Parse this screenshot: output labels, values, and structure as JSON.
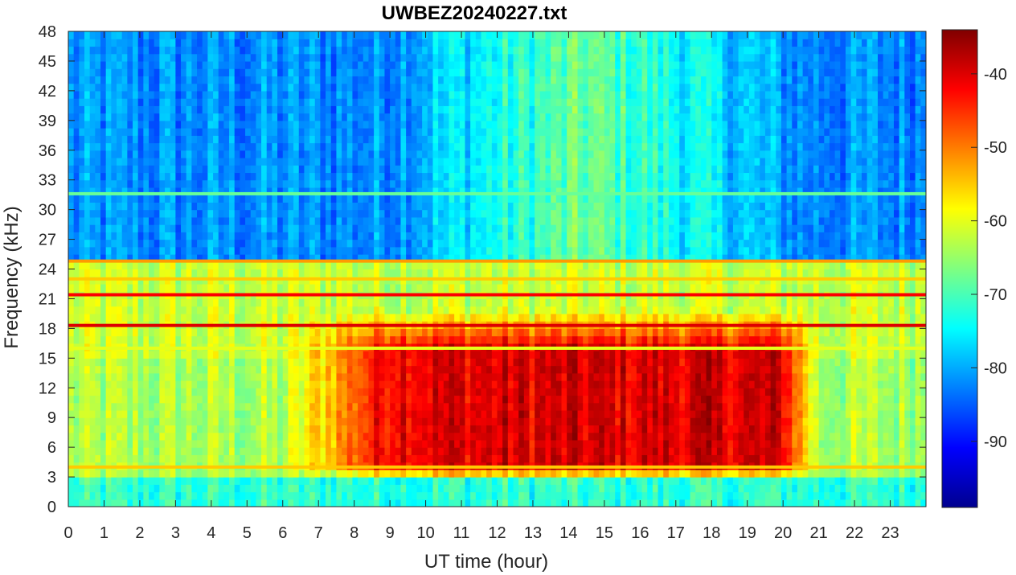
{
  "chart_data": {
    "type": "heatmap",
    "title": "UWBEZ20240227.txt",
    "xlabel": "UT time (hour)",
    "ylabel": "Frequency (kHz)",
    "xlim": [
      0,
      24
    ],
    "ylim": [
      0,
      48
    ],
    "x_ticks": [
      0,
      1,
      2,
      3,
      4,
      5,
      6,
      7,
      8,
      9,
      10,
      11,
      12,
      13,
      14,
      15,
      16,
      17,
      18,
      19,
      20,
      21,
      22,
      23
    ],
    "y_ticks": [
      0,
      3,
      6,
      9,
      12,
      15,
      18,
      21,
      24,
      27,
      30,
      33,
      36,
      39,
      42,
      45,
      48
    ],
    "colorbar": {
      "colormap": "jet",
      "range": [
        -99,
        -34
      ],
      "ticks": [
        -90,
        -80,
        -70,
        -60,
        -50,
        -40
      ]
    },
    "background_levels": [
      {
        "freq_band": [
          0,
          3
        ],
        "level": -72
      },
      {
        "freq_band": [
          3,
          15
        ],
        "level": -64
      },
      {
        "freq_band": [
          15,
          25
        ],
        "level": -62
      },
      {
        "freq_band": [
          25,
          48
        ],
        "level": -82
      }
    ],
    "strong_emission_region": {
      "time": [
        9,
        20
      ],
      "freq": [
        4,
        16
      ],
      "level": -48
    },
    "narrowband_lines": [
      {
        "freq_khz": 18.3,
        "level": -40
      },
      {
        "freq_khz": 21.4,
        "level": -42
      },
      {
        "freq_khz": 24.8,
        "level": -52
      },
      {
        "freq_khz": 23.0,
        "level": -55
      },
      {
        "freq_khz": 4.0,
        "level": -55
      },
      {
        "freq_khz": 16.0,
        "level": -60
      },
      {
        "freq_khz": 31.6,
        "level": -68
      }
    ]
  }
}
